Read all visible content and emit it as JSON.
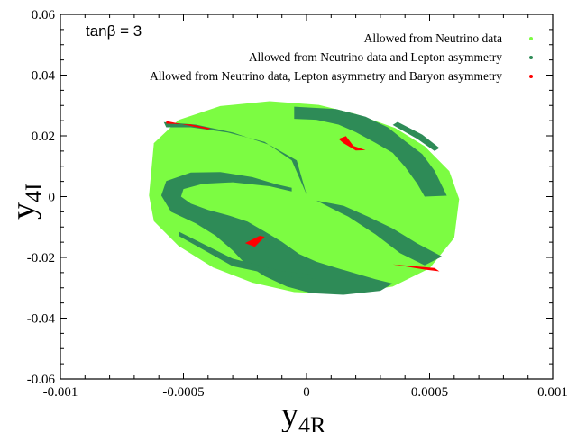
{
  "chart_data": {
    "type": "scatter",
    "annotation": "tanβ = 3",
    "xlabel": {
      "main": "y",
      "sub": "4R"
    },
    "ylabel": {
      "main": "y",
      "sub": "4I"
    },
    "xlim": [
      -0.001,
      0.001
    ],
    "ylim": [
      -0.06,
      0.06
    ],
    "xticks": [
      "-0.001",
      "-0.0005",
      "0",
      "0.0005",
      "0.001"
    ],
    "xtick_values": [
      -0.001,
      -0.0005,
      0,
      0.0005,
      0.001
    ],
    "yticks": [
      "-0.06",
      "-0.04",
      "-0.02",
      "0",
      "0.02",
      "0.04",
      "0.06"
    ],
    "ytick_values": [
      -0.06,
      -0.04,
      -0.02,
      0,
      0.02,
      0.04,
      0.06
    ],
    "legend_position": "top-right",
    "series": [
      {
        "name": "Allowed from Neutrino data",
        "color": "#7cfc42",
        "shape": "ellipse",
        "center": [
          8.5e-06,
          0.0002
        ],
        "polygon": [
          [
            -0.00062,
            0.0176
          ],
          [
            -0.00052,
            0.0252
          ],
          [
            -0.00035,
            0.0298
          ],
          [
            -0.00015,
            0.0314
          ],
          [
            5e-05,
            0.0302
          ],
          [
            0.0002,
            0.0272
          ],
          [
            0.00036,
            0.0226
          ],
          [
            0.00048,
            0.0166
          ],
          [
            0.00058,
            0.0084
          ],
          [
            0.00062,
            -0.0008
          ],
          [
            0.0006,
            -0.0136
          ],
          [
            0.0005,
            -0.0236
          ],
          [
            0.00035,
            -0.0296
          ],
          [
            0.00015,
            -0.0321
          ],
          [
            -5e-05,
            -0.0314
          ],
          [
            -0.00022,
            -0.0283
          ],
          [
            -0.00038,
            -0.0233
          ],
          [
            -0.00052,
            -0.0162
          ],
          [
            -0.00062,
            -0.0081
          ],
          [
            -0.00064,
            0.0004
          ]
        ]
      },
      {
        "name": "Allowed from Neutrino data and Lepton asymmetry",
        "color": "#2e8b57",
        "regions": [
          [
            [
              -0.00058,
              0.0245
            ],
            [
              -0.00045,
              0.0237
            ],
            [
              -0.0003,
              0.0211
            ],
            [
              -0.00015,
              0.017
            ],
            [
              -4e-05,
              0.0119
            ],
            [
              0.0,
              0.0007
            ],
            [
              -6e-05,
              0.0119
            ],
            [
              -0.00017,
              0.018
            ],
            [
              -0.00032,
              0.0211
            ],
            [
              -0.00047,
              0.0228
            ],
            [
              -0.00057,
              0.0228
            ]
          ],
          [
            [
              -5e-05,
              0.0296
            ],
            [
              0.00012,
              0.0288
            ],
            [
              0.00024,
              0.0263
            ],
            [
              0.00033,
              0.0228
            ],
            [
              0.0004,
              0.0183
            ],
            [
              0.00047,
              0.014
            ],
            [
              0.00052,
              0.0085
            ],
            [
              0.00057,
              0.0003
            ],
            [
              0.00048,
              0.0
            ],
            [
              0.00045,
              0.0042
            ],
            [
              0.0004,
              0.0098
            ],
            [
              0.00035,
              0.0144
            ],
            [
              0.00028,
              0.0177
            ],
            [
              0.0002,
              0.0212
            ],
            [
              0.00013,
              0.0237
            ],
            [
              4e-05,
              0.0253
            ],
            [
              -5e-05,
              0.0256
            ]
          ],
          [
            [
              -6e-05,
              0.0017
            ],
            [
              -0.00015,
              0.0034
            ],
            [
              -0.0003,
              0.0047
            ],
            [
              -0.00042,
              0.0042
            ],
            [
              -0.0005,
              0.0025
            ],
            [
              -0.00051,
              0.0
            ],
            [
              -0.00047,
              -0.0023
            ],
            [
              -0.0004,
              -0.0044
            ],
            [
              -0.00032,
              -0.0061
            ],
            [
              -0.00024,
              -0.0082
            ],
            [
              -0.00017,
              -0.0115
            ],
            [
              -0.0001,
              -0.0149
            ],
            [
              -3e-05,
              -0.0189
            ],
            [
              4e-05,
              -0.0214
            ],
            [
              0.00012,
              -0.0234
            ],
            [
              0.0002,
              -0.0253
            ],
            [
              0.00028,
              -0.0272
            ],
            [
              0.00035,
              -0.0286
            ],
            [
              0.0003,
              -0.031
            ],
            [
              0.00015,
              -0.0323
            ],
            [
              2e-05,
              -0.0318
            ],
            [
              -8e-05,
              -0.0296
            ],
            [
              -0.00017,
              -0.0262
            ],
            [
              -0.00025,
              -0.022
            ],
            [
              -0.0003,
              -0.0177
            ],
            [
              -0.00037,
              -0.0128
            ],
            [
              -0.00045,
              -0.0088
            ],
            [
              -0.00055,
              -0.005
            ],
            [
              -0.00059,
              0.0004
            ],
            [
              -0.00057,
              0.0051
            ],
            [
              -0.00047,
              0.0079
            ],
            [
              -0.00035,
              0.0081
            ],
            [
              -0.00022,
              0.0064
            ],
            [
              -0.00012,
              0.004
            ],
            [
              -6e-05,
              0.0029
            ]
          ],
          [
            [
              4e-05,
              -0.0013
            ],
            [
              0.00017,
              -0.0066
            ],
            [
              0.00028,
              -0.0124
            ],
            [
              0.00038,
              -0.0186
            ],
            [
              0.00048,
              -0.0226
            ],
            [
              0.00055,
              -0.0197
            ],
            [
              0.00045,
              -0.0154
            ],
            [
              0.00035,
              -0.0105
            ],
            [
              0.00025,
              -0.0066
            ],
            [
              0.00015,
              -0.003
            ]
          ],
          [
            [
              -0.00052,
              -0.0115
            ],
            [
              -0.0003,
              -0.0204
            ],
            [
              -0.0001,
              -0.0245
            ],
            [
              4e-05,
              -0.0258
            ],
            [
              4e-05,
              -0.027
            ],
            [
              -0.0001,
              -0.0263
            ],
            [
              -0.0003,
              -0.0229
            ],
            [
              -0.00052,
              -0.0129
            ]
          ],
          [
            [
              0.00035,
              0.0236
            ],
            [
              0.00045,
              0.019
            ],
            [
              0.00052,
              0.015
            ],
            [
              0.00054,
              0.016
            ],
            [
              0.00047,
              0.0204
            ],
            [
              0.00037,
              0.0246
            ]
          ]
        ]
      },
      {
        "name": "Allowed from Neutrino data, Lepton asymmetry and Baryon asymmetry",
        "color": "#ff0000",
        "regions": [
          [
            [
              -0.00057,
              0.0249
            ],
            [
              -0.00048,
              0.0234
            ],
            [
              -0.0004,
              0.0221
            ],
            [
              -0.00039,
              0.0225
            ],
            [
              -0.00047,
              0.0238
            ],
            [
              -0.00057,
              0.024
            ]
          ],
          [
            [
              0.00013,
              0.019
            ],
            [
              0.00015,
              0.0176
            ],
            [
              0.0002,
              0.0152
            ],
            [
              0.00024,
              0.0153
            ],
            [
              0.00019,
              0.0167
            ],
            [
              0.00016,
              0.0199
            ]
          ],
          [
            [
              -0.00017,
              -0.0132
            ],
            [
              -0.00021,
              -0.0165
            ],
            [
              -0.00025,
              -0.0153
            ],
            [
              -0.00019,
              -0.0129
            ]
          ],
          [
            [
              0.00035,
              -0.0223
            ],
            [
              0.00048,
              -0.024
            ],
            [
              0.00054,
              -0.0246
            ],
            [
              0.00052,
              -0.0235
            ],
            [
              0.00042,
              -0.0228
            ]
          ]
        ]
      }
    ]
  }
}
